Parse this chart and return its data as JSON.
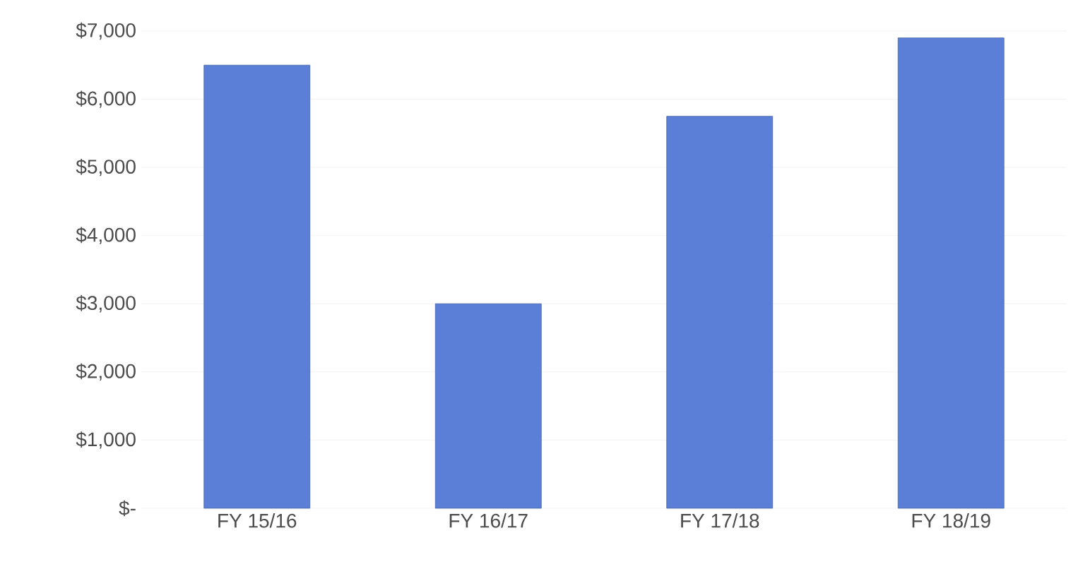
{
  "chart_data": {
    "type": "bar",
    "categories": [
      "FY 15/16",
      "FY 16/17",
      "FY 17/18",
      "FY 18/19"
    ],
    "values": [
      6500,
      3000,
      5750,
      6900
    ],
    "color": "#5b7fd6",
    "ylim": [
      0,
      7000
    ],
    "yticks": [
      {
        "value": 0,
        "label": "$-"
      },
      {
        "value": 1000,
        "label": "$1,000"
      },
      {
        "value": 2000,
        "label": "$2,000"
      },
      {
        "value": 3000,
        "label": "$3,000"
      },
      {
        "value": 4000,
        "label": "$4,000"
      },
      {
        "value": 5000,
        "label": "$5,000"
      },
      {
        "value": 6000,
        "label": "$6,000"
      },
      {
        "value": 7000,
        "label": "$7,000"
      }
    ],
    "grid": "y"
  }
}
